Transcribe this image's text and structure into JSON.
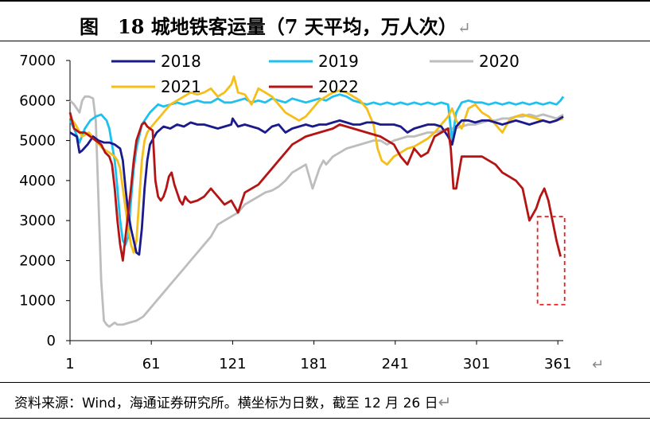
{
  "figure": {
    "title": "图　18 城地铁客运量（7 天平均，万人次）",
    "return_mark": "↵",
    "source": "资料来源：Wind，海通证券研究所。横坐标为日数，截至 12 月 26 日"
  },
  "chart_data": {
    "type": "line",
    "xlabel": "",
    "ylabel": "",
    "xlim": [
      1,
      365
    ],
    "ylim": [
      0,
      7000
    ],
    "x_ticks": [
      1,
      61,
      121,
      181,
      241,
      301,
      361
    ],
    "y_ticks": [
      0,
      1000,
      2000,
      3000,
      4000,
      5000,
      6000,
      7000
    ],
    "legend": "top, 3 columns",
    "grid": false,
    "series": [
      {
        "name": "2018",
        "color": "#1a1a8c",
        "x": [
          1,
          6,
          8,
          10,
          14,
          18,
          22,
          26,
          30,
          34,
          38,
          40,
          42,
          44,
          46,
          48,
          50,
          52,
          54,
          56,
          58,
          60,
          65,
          70,
          75,
          80,
          85,
          90,
          95,
          100,
          105,
          110,
          115,
          120,
          121,
          125,
          130,
          135,
          140,
          145,
          150,
          155,
          160,
          165,
          170,
          175,
          180,
          185,
          190,
          195,
          200,
          205,
          210,
          215,
          220,
          225,
          230,
          235,
          240,
          245,
          250,
          255,
          260,
          265,
          270,
          275,
          280,
          283,
          286,
          290,
          295,
          300,
          305,
          310,
          315,
          320,
          325,
          330,
          335,
          340,
          345,
          350,
          355,
          360,
          365
        ],
        "values": [
          5200,
          5100,
          4700,
          4750,
          4900,
          5100,
          5000,
          4950,
          4950,
          4900,
          4800,
          4500,
          3800,
          3200,
          2800,
          2500,
          2200,
          2150,
          2800,
          3800,
          4500,
          4900,
          5200,
          5350,
          5300,
          5400,
          5350,
          5450,
          5400,
          5400,
          5350,
          5300,
          5350,
          5400,
          5550,
          5350,
          5400,
          5350,
          5300,
          5200,
          5350,
          5400,
          5200,
          5300,
          5350,
          5400,
          5350,
          5400,
          5400,
          5450,
          5500,
          5450,
          5400,
          5400,
          5450,
          5450,
          5400,
          5400,
          5400,
          5350,
          5200,
          5300,
          5350,
          5400,
          5400,
          5350,
          5100,
          4900,
          5350,
          5500,
          5500,
          5450,
          5500,
          5500,
          5450,
          5400,
          5450,
          5500,
          5450,
          5400,
          5450,
          5500,
          5450,
          5500,
          5600
        ]
      },
      {
        "name": "2019",
        "color": "#1ec0ef",
        "x": [
          1,
          4,
          8,
          12,
          16,
          20,
          24,
          28,
          30,
          32,
          34,
          36,
          38,
          40,
          42,
          44,
          46,
          48,
          50,
          52,
          54,
          56,
          58,
          60,
          63,
          66,
          70,
          75,
          80,
          85,
          90,
          95,
          100,
          105,
          110,
          115,
          120,
          125,
          130,
          135,
          140,
          145,
          150,
          155,
          160,
          165,
          170,
          175,
          180,
          185,
          190,
          195,
          200,
          205,
          210,
          215,
          220,
          225,
          230,
          235,
          240,
          245,
          250,
          255,
          260,
          265,
          270,
          275,
          280,
          283,
          286,
          290,
          295,
          300,
          305,
          310,
          315,
          320,
          325,
          330,
          335,
          340,
          345,
          350,
          355,
          360,
          363,
          365
        ],
        "values": [
          5500,
          5300,
          4950,
          5300,
          5500,
          5600,
          5650,
          5500,
          5300,
          4900,
          4500,
          3800,
          3000,
          2500,
          2400,
          2600,
          3500,
          4300,
          4800,
          5100,
          5400,
          5500,
          5600,
          5700,
          5800,
          5900,
          5850,
          5900,
          5950,
          5900,
          5950,
          6000,
          5950,
          5950,
          6050,
          5950,
          5950,
          6000,
          6050,
          5950,
          6000,
          5950,
          6050,
          6000,
          5950,
          6050,
          6000,
          5950,
          6000,
          6050,
          6000,
          6100,
          6150,
          6100,
          6000,
          5950,
          5900,
          5950,
          5900,
          5950,
          5900,
          5950,
          5900,
          5950,
          5900,
          5950,
          5900,
          5950,
          5900,
          5000,
          5700,
          5950,
          6000,
          5950,
          5950,
          5900,
          5950,
          5900,
          5950,
          5900,
          5950,
          5900,
          5950,
          5900,
          5950,
          5900,
          6000,
          6100
        ]
      },
      {
        "name": "2020",
        "color": "#bdbdbd",
        "x": [
          1,
          4,
          8,
          10,
          12,
          15,
          18,
          20,
          22,
          24,
          26,
          28,
          30,
          32,
          34,
          36,
          40,
          45,
          50,
          55,
          60,
          65,
          70,
          75,
          80,
          85,
          90,
          95,
          100,
          105,
          110,
          115,
          120,
          125,
          130,
          135,
          140,
          145,
          150,
          155,
          160,
          165,
          170,
          175,
          180,
          185,
          188,
          190,
          195,
          200,
          205,
          210,
          215,
          220,
          225,
          230,
          235,
          240,
          245,
          250,
          255,
          260,
          265,
          270,
          275,
          280,
          285,
          290,
          295,
          300,
          305,
          310,
          315,
          320,
          325,
          330,
          335,
          340,
          345,
          350,
          355,
          360,
          365
        ],
        "values": [
          6000,
          5900,
          5700,
          6000,
          6100,
          6100,
          6050,
          5500,
          3500,
          1500,
          500,
          400,
          350,
          400,
          450,
          400,
          400,
          450,
          500,
          600,
          800,
          1000,
          1200,
          1400,
          1600,
          1800,
          2000,
          2200,
          2400,
          2600,
          2900,
          3000,
          3100,
          3200,
          3400,
          3500,
          3600,
          3700,
          3750,
          3850,
          4000,
          4200,
          4300,
          4400,
          3800,
          4300,
          4500,
          4400,
          4600,
          4700,
          4800,
          4850,
          4900,
          4950,
          5000,
          5000,
          4900,
          5000,
          5050,
          5100,
          5100,
          5150,
          5200,
          5200,
          5250,
          5300,
          5300,
          5350,
          5400,
          5400,
          5450,
          5500,
          5500,
          5550,
          5550,
          5600,
          5600,
          5650,
          5600,
          5650,
          5600,
          5550,
          5650
        ]
      },
      {
        "name": "2021",
        "color": "#f5bf1a",
        "x": [
          1,
          5,
          10,
          15,
          20,
          25,
          30,
          34,
          36,
          38,
          40,
          42,
          44,
          46,
          48,
          50,
          52,
          54,
          56,
          58,
          60,
          65,
          70,
          75,
          80,
          85,
          90,
          95,
          100,
          105,
          110,
          115,
          120,
          122,
          125,
          130,
          135,
          140,
          145,
          150,
          155,
          160,
          165,
          170,
          175,
          180,
          185,
          190,
          195,
          200,
          205,
          210,
          215,
          220,
          225,
          228,
          231,
          235,
          240,
          245,
          250,
          255,
          260,
          265,
          270,
          275,
          280,
          283,
          286,
          290,
          295,
          300,
          305,
          310,
          315,
          320,
          325,
          330,
          335,
          340,
          345,
          350,
          355,
          360,
          365
        ],
        "values": [
          5600,
          5400,
          5100,
          5200,
          5000,
          4800,
          4700,
          4600,
          4500,
          4300,
          3800,
          3300,
          2800,
          2400,
          2200,
          2500,
          3500,
          4500,
          5000,
          5200,
          5300,
          5500,
          5700,
          5900,
          6000,
          6100,
          6200,
          6150,
          6200,
          6300,
          6100,
          6200,
          6400,
          6600,
          6200,
          6150,
          5900,
          6300,
          6200,
          6100,
          5900,
          5700,
          5600,
          5500,
          5600,
          5800,
          6000,
          6100,
          6200,
          6250,
          6200,
          6100,
          6000,
          5800,
          5400,
          4800,
          4500,
          4400,
          4600,
          4700,
          4800,
          4850,
          4950,
          5050,
          5200,
          5400,
          5600,
          5800,
          5500,
          5300,
          5800,
          5900,
          5700,
          5600,
          5400,
          5200,
          5500,
          5600,
          5650,
          5600,
          5550,
          5500,
          5450,
          5500,
          5550
        ]
      },
      {
        "name": "2022",
        "color": "#b51414",
        "x": [
          1,
          4,
          8,
          12,
          16,
          20,
          24,
          27,
          30,
          32,
          34,
          36,
          38,
          40,
          42,
          44,
          46,
          48,
          50,
          52,
          54,
          56,
          58,
          60,
          62,
          64,
          66,
          68,
          70,
          72,
          74,
          76,
          78,
          80,
          82,
          84,
          86,
          88,
          90,
          95,
          100,
          105,
          110,
          115,
          120,
          125,
          130,
          135,
          140,
          145,
          150,
          155,
          160,
          165,
          170,
          175,
          180,
          185,
          190,
          195,
          200,
          205,
          210,
          215,
          220,
          225,
          230,
          235,
          240,
          245,
          250,
          255,
          260,
          265,
          270,
          275,
          280,
          282,
          284,
          286,
          288,
          290,
          295,
          300,
          305,
          310,
          315,
          320,
          325,
          330,
          335,
          340,
          345,
          348,
          351,
          354,
          357,
          360,
          363
        ],
        "values": [
          5700,
          5300,
          5200,
          5200,
          5100,
          5000,
          4900,
          4700,
          4600,
          4400,
          3800,
          3000,
          2400,
          2000,
          2600,
          3200,
          3800,
          4500,
          5000,
          5200,
          5400,
          5450,
          5350,
          5300,
          5250,
          4000,
          3600,
          3500,
          3600,
          3800,
          4100,
          4200,
          3900,
          3700,
          3500,
          3400,
          3600,
          3500,
          3450,
          3500,
          3600,
          3800,
          3600,
          3400,
          3500,
          3200,
          3700,
          3800,
          3900,
          4100,
          4300,
          4500,
          4700,
          4900,
          5000,
          5100,
          5150,
          5200,
          5250,
          5300,
          5400,
          5350,
          5300,
          5250,
          5200,
          5150,
          5100,
          5000,
          4900,
          4600,
          4400,
          4800,
          4600,
          4700,
          5100,
          5200,
          5300,
          4800,
          3800,
          3800,
          4200,
          4600,
          4600,
          4600,
          4600,
          4500,
          4400,
          4200,
          4100,
          4000,
          3800,
          3000,
          3300,
          3600,
          3800,
          3500,
          3000,
          2500,
          2100
        ]
      }
    ],
    "annotation": {
      "type": "dashed-box",
      "color": "#e52020",
      "x_range": [
        346,
        366
      ],
      "y_range": [
        900,
        3100
      ]
    }
  }
}
